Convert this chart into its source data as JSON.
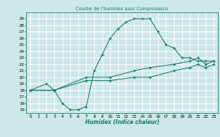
{
  "title": "Courbe de l'humidex pour Comprovasco",
  "xlabel": "Humidex (Indice chaleur)",
  "bg_color": "#cce8e8",
  "grid_color": "#ffffff",
  "line_color": "#1a7a6e",
  "xlim": [
    -0.5,
    23.5
  ],
  "ylim": [
    14.5,
    30.0
  ],
  "xticks": [
    0,
    1,
    2,
    3,
    4,
    5,
    6,
    7,
    8,
    9,
    10,
    11,
    12,
    13,
    14,
    15,
    16,
    17,
    18,
    19,
    20,
    21,
    22,
    23
  ],
  "yticks": [
    15,
    16,
    17,
    18,
    19,
    20,
    21,
    22,
    23,
    24,
    25,
    26,
    27,
    28,
    29
  ],
  "curve1_x": [
    0,
    2,
    3,
    4,
    5,
    6,
    7,
    8,
    9,
    10,
    11,
    12,
    13,
    14,
    15,
    16,
    17,
    18,
    19,
    20,
    21,
    22,
    23
  ],
  "curve1_y": [
    18,
    19,
    18,
    16,
    15,
    15,
    15.5,
    21,
    23.5,
    26,
    27.5,
    28.5,
    29,
    29,
    29,
    27,
    25,
    24.5,
    23,
    23,
    22.5,
    22.5,
    22.5
  ],
  "curve2_x": [
    0,
    3,
    7,
    10,
    13,
    15,
    18,
    20,
    21,
    22,
    23
  ],
  "curve2_y": [
    18,
    18,
    20,
    20,
    21,
    21.5,
    22,
    22.5,
    23,
    22,
    22.5
  ],
  "curve3_x": [
    0,
    3,
    7,
    10,
    13,
    15,
    18,
    20,
    21,
    22,
    23
  ],
  "curve3_y": [
    18,
    18,
    19.5,
    19.5,
    20,
    20,
    21,
    21.5,
    22,
    21.5,
    22
  ]
}
